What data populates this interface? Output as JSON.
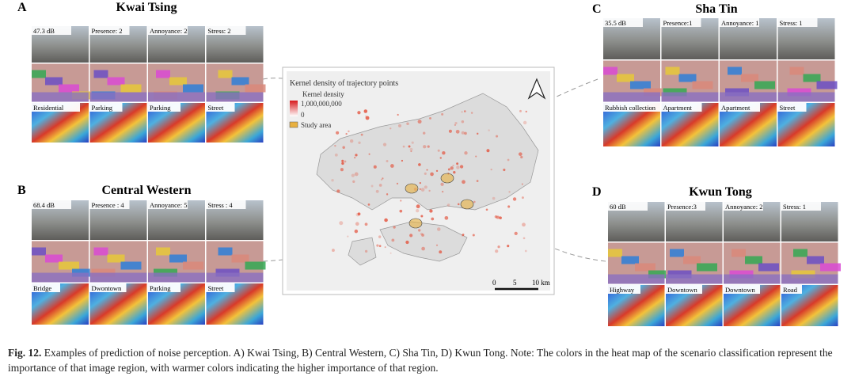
{
  "panels": [
    {
      "letter": "A",
      "title": "Kwai Tsing",
      "metrics": [
        "47.3 dB",
        "Presence: 2",
        "Annoyance: 2",
        "Stress: 2"
      ],
      "scenes": [
        "Residential",
        "Parking",
        "Parking",
        "Street"
      ]
    },
    {
      "letter": "B",
      "title": "Central Western",
      "metrics": [
        "68.4 dB",
        "Presence : 4",
        "Annoyance: 5",
        "Stress : 4"
      ],
      "scenes": [
        "Bridge",
        "Dwontown",
        "Parking",
        "Street"
      ]
    },
    {
      "letter": "C",
      "title": "Sha Tin",
      "metrics": [
        "35.5 dB",
        "Presence:1",
        "Annoyance: 1",
        "Stress: 1"
      ],
      "scenes": [
        "Rubbish collection",
        "Apartment",
        "Apartment",
        "Street"
      ]
    },
    {
      "letter": "D",
      "title": "Kwun Tong",
      "metrics": [
        "60 dB",
        "Presence:3",
        "Annoyance: 2",
        "Stress: 1"
      ],
      "scenes": [
        "Highway",
        "Downtown",
        "Downtown",
        "Road"
      ]
    }
  ],
  "map": {
    "title": "Kernel density of trajectory points",
    "legend_title": "Kernel density",
    "legend_max": "1,000,000,000",
    "legend_min": "0",
    "legend_area": "Study area",
    "scale": [
      "0",
      "5",
      "10 km"
    ]
  },
  "caption": {
    "label": "Fig. 12.",
    "text": "Examples of prediction of noise perception. A) Kwai Tsing, B) Central Western, C) Sha Tin, D) Kwun Tong. Note: The colors in the heat map of the scenario classification represent the importance of that image region, with warmer colors indicating the higher importance of that region."
  }
}
